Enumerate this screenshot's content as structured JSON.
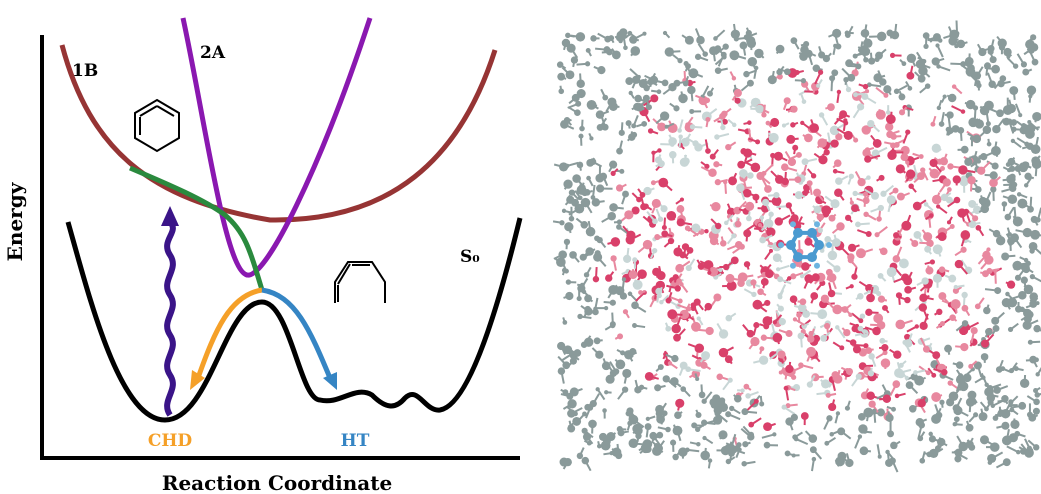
{
  "left_panel": {
    "y_axis_label": "Energy",
    "x_axis_label": "Reaction Coordinate",
    "curve_labels": [
      "1B",
      "2A",
      "S₀"
    ],
    "product_labels": [
      "CHD",
      "HT"
    ]
  }
}
